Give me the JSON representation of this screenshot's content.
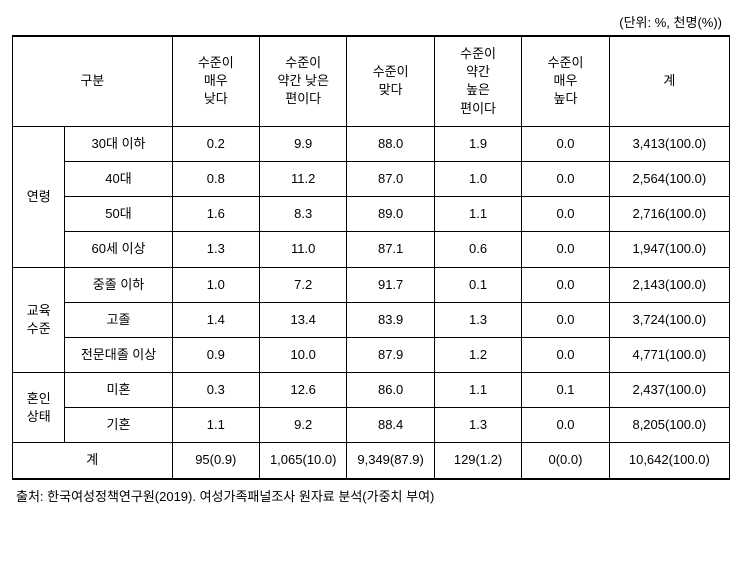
{
  "unit_label": "(단위: %, 천명(%))",
  "headers": {
    "category": "구분",
    "col1": "수준이\n매우\n낮다",
    "col2": "수준이\n약간 낮은\n편이다",
    "col3": "수준이\n맞다",
    "col4": "수준이\n약간\n높은\n편이다",
    "col5": "수준이\n매우\n높다",
    "total": "계"
  },
  "groups": [
    {
      "label": "연령",
      "rows": [
        {
          "label": "30대 이하",
          "v1": "0.2",
          "v2": "9.9",
          "v3": "88.0",
          "v4": "1.9",
          "v5": "0.0",
          "total": "3,413(100.0)"
        },
        {
          "label": "40대",
          "v1": "0.8",
          "v2": "11.2",
          "v3": "87.0",
          "v4": "1.0",
          "v5": "0.0",
          "total": "2,564(100.0)"
        },
        {
          "label": "50대",
          "v1": "1.6",
          "v2": "8.3",
          "v3": "89.0",
          "v4": "1.1",
          "v5": "0.0",
          "total": "2,716(100.0)"
        },
        {
          "label": "60세 이상",
          "v1": "1.3",
          "v2": "11.0",
          "v3": "87.1",
          "v4": "0.6",
          "v5": "0.0",
          "total": "1,947(100.0)"
        }
      ]
    },
    {
      "label": "교육\n수준",
      "rows": [
        {
          "label": "중졸 이하",
          "v1": "1.0",
          "v2": "7.2",
          "v3": "91.7",
          "v4": "0.1",
          "v5": "0.0",
          "total": "2,143(100.0)"
        },
        {
          "label": "고졸",
          "v1": "1.4",
          "v2": "13.4",
          "v3": "83.9",
          "v4": "1.3",
          "v5": "0.0",
          "total": "3,724(100.0)"
        },
        {
          "label": "전문대졸 이상",
          "v1": "0.9",
          "v2": "10.0",
          "v3": "87.9",
          "v4": "1.2",
          "v5": "0.0",
          "total": "4,771(100.0)"
        }
      ]
    },
    {
      "label": "혼인\n상태",
      "rows": [
        {
          "label": "미혼",
          "v1": "0.3",
          "v2": "12.6",
          "v3": "86.0",
          "v4": "1.1",
          "v5": "0.1",
          "total": "2,437(100.0)"
        },
        {
          "label": "기혼",
          "v1": "1.1",
          "v2": "9.2",
          "v3": "88.4",
          "v4": "1.3",
          "v5": "0.0",
          "total": "8,205(100.0)"
        }
      ]
    }
  ],
  "totals": {
    "label": "계",
    "v1": "95(0.9)",
    "v2": "1,065(10.0)",
    "v3": "9,349(87.9)",
    "v4": "129(1.2)",
    "v5": "0(0.0)",
    "total": "10,642(100.0)"
  },
  "footer": "출처: 한국여성정책연구원(2019). 여성가족패널조사 원자료 분석(가중치 부여)",
  "colors": {
    "border": "#000000",
    "text": "#000000",
    "background": "#ffffff"
  },
  "font_sizes": {
    "body": 13,
    "unit": 13,
    "footer": 13
  }
}
